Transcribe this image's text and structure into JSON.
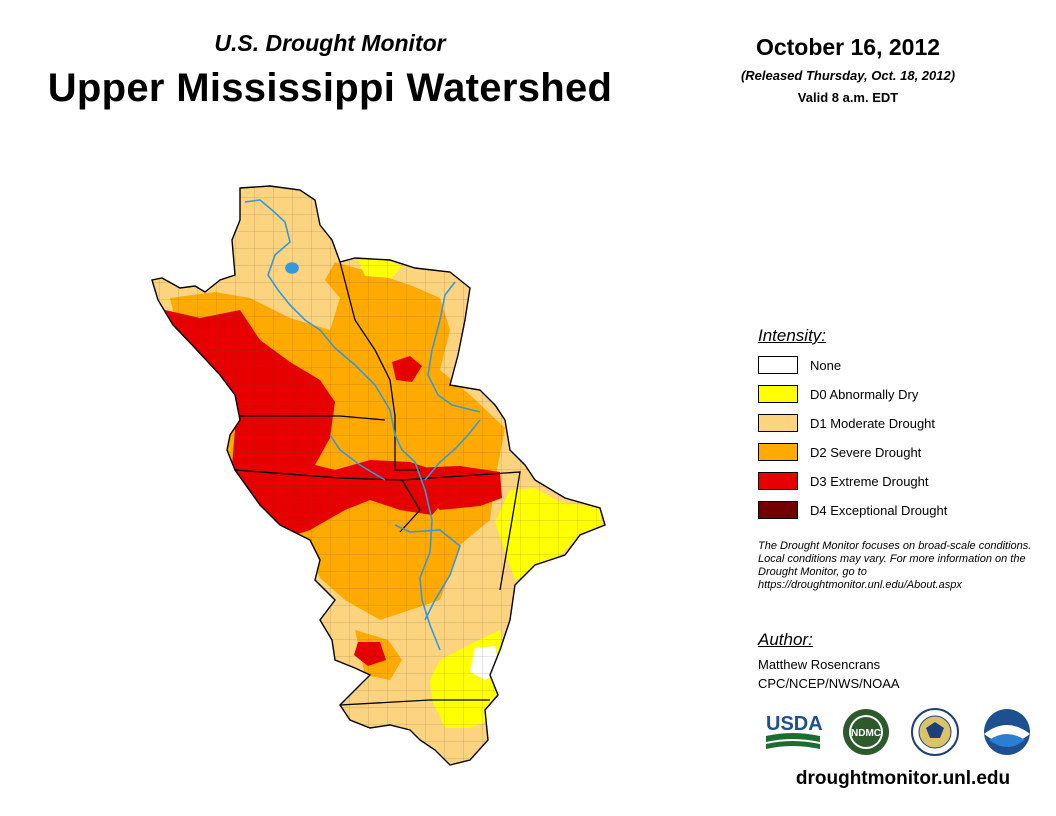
{
  "header": {
    "subtitle": "U.S. Drought Monitor",
    "title": "Upper Mississippi Watershed",
    "date": "October 16, 2012",
    "released": "(Released Thursday, Oct. 18, 2012)",
    "valid": "Valid 8 a.m. EDT"
  },
  "legend": {
    "title": "Intensity:",
    "items": [
      {
        "label": "None",
        "color": "#ffffff"
      },
      {
        "label": "D0 Abnormally Dry",
        "color": "#ffff00"
      },
      {
        "label": "D1 Moderate Drought",
        "color": "#fcd37f"
      },
      {
        "label": "D2 Severe Drought",
        "color": "#ffaa00"
      },
      {
        "label": "D3 Extreme Drought",
        "color": "#e60000"
      },
      {
        "label": "D4 Exceptional Drought",
        "color": "#730000"
      }
    ]
  },
  "note": "The Drought Monitor focuses on broad-scale conditions. Local conditions may vary. For more information on the Drought Monitor, go to https://droughtmonitor.unl.edu/About.aspx",
  "author": {
    "title": "Author:",
    "name": "Matthew Rosencrans",
    "org": "CPC/NCEP/NWS/NOAA"
  },
  "logos": [
    {
      "icon": "usda-logo",
      "text": "USDA"
    },
    {
      "icon": "ndmc-logo",
      "text": "NDMC"
    },
    {
      "icon": "doc-seal",
      "text": ""
    },
    {
      "icon": "noaa-logo",
      "text": "NOAA"
    }
  ],
  "footer_url": "droughtmonitor.unl.edu",
  "map": {
    "region": "Upper Mississippi Watershed",
    "river_color": "#3399dd",
    "border_color": "#000000"
  }
}
